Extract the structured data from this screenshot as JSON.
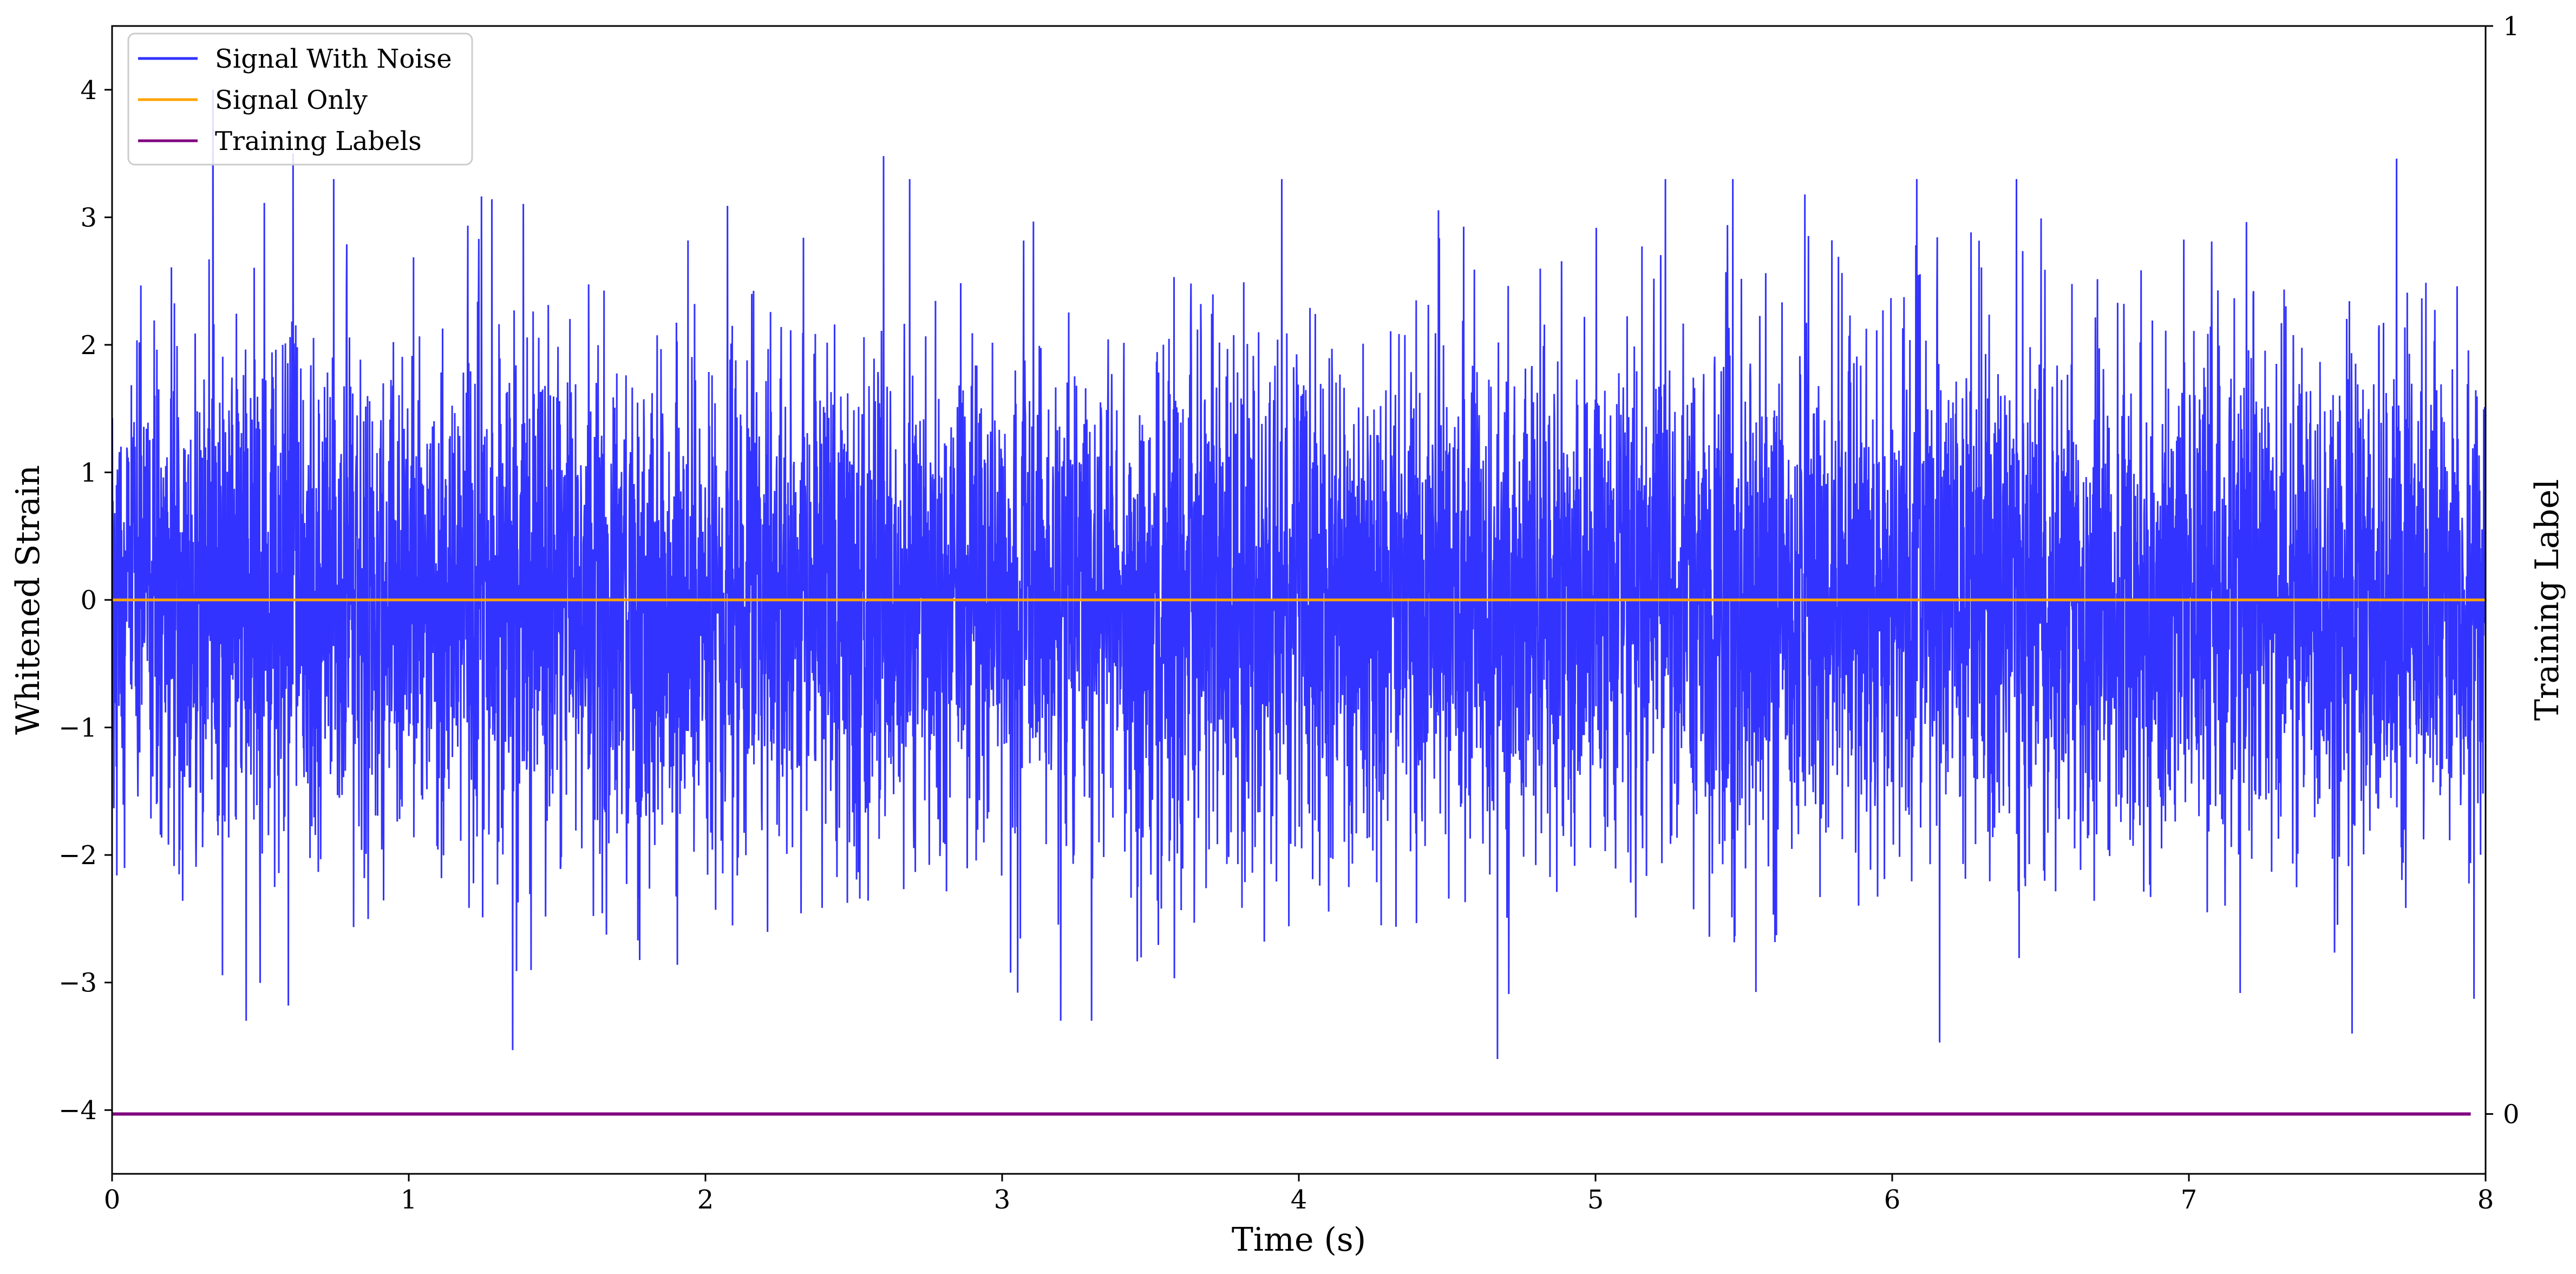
{
  "chart_data": {
    "type": "line",
    "xlabel": "Time (s)",
    "ylabel_left": "Whitened Strain",
    "ylabel_right": "Training Label",
    "xlim": [
      0,
      8
    ],
    "ylim_left": [
      -4.5,
      4.5
    ],
    "ylim_right": [
      -0.055,
      1.0
    ],
    "x_ticks": [
      "0",
      "1",
      "2",
      "3",
      "4",
      "5",
      "6",
      "7",
      "8"
    ],
    "y_ticks_left": [
      "4",
      "3",
      "2",
      "1",
      "0",
      "−1",
      "−2",
      "−3",
      "−4"
    ],
    "y_ticks_right": [
      "1",
      "0"
    ],
    "grid": false,
    "legend_position": "upper-left",
    "series": [
      {
        "name": "Signal With Noise",
        "color": "#3333ff",
        "axis": "left",
        "description": "dense white-noise trace, sigma approx 1",
        "noise_std": 1.0,
        "peaks": [
          {
            "x": 0.34,
            "y": 4.0
          },
          {
            "x": 0.61,
            "y": 3.5
          },
          {
            "x": 2.6,
            "y": 3.48
          },
          {
            "x": 7.7,
            "y": 3.46
          },
          {
            "x": 1.35,
            "y": -3.53
          },
          {
            "x": 4.67,
            "y": -3.6
          },
          {
            "x": 6.16,
            "y": -3.47
          },
          {
            "x": 7.55,
            "y": -3.4
          }
        ]
      },
      {
        "name": "Signal Only",
        "color": "#ffa500",
        "axis": "left",
        "x": [
          0,
          8
        ],
        "y": [
          0,
          0
        ]
      },
      {
        "name": "Training Labels",
        "color": "#800080",
        "axis": "right",
        "x": [
          0,
          7.95
        ],
        "y": [
          0,
          0
        ]
      }
    ]
  }
}
